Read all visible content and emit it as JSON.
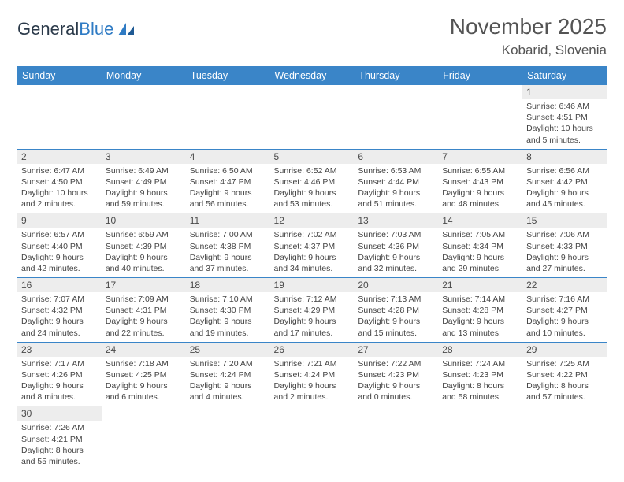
{
  "logo": {
    "text1": "General",
    "text2": "Blue"
  },
  "title": "November 2025",
  "location": "Kobarid, Slovenia",
  "days": [
    "Sunday",
    "Monday",
    "Tuesday",
    "Wednesday",
    "Thursday",
    "Friday",
    "Saturday"
  ],
  "colors": {
    "header_bg": "#3a85c8",
    "header_text": "#ffffff",
    "daynum_bg": "#ededed",
    "border": "#3a85c8"
  },
  "cells": [
    [
      null,
      null,
      null,
      null,
      null,
      null,
      {
        "n": "1",
        "sr": "Sunrise: 6:46 AM",
        "ss": "Sunset: 4:51 PM",
        "dl": "Daylight: 10 hours and 5 minutes."
      }
    ],
    [
      {
        "n": "2",
        "sr": "Sunrise: 6:47 AM",
        "ss": "Sunset: 4:50 PM",
        "dl": "Daylight: 10 hours and 2 minutes."
      },
      {
        "n": "3",
        "sr": "Sunrise: 6:49 AM",
        "ss": "Sunset: 4:49 PM",
        "dl": "Daylight: 9 hours and 59 minutes."
      },
      {
        "n": "4",
        "sr": "Sunrise: 6:50 AM",
        "ss": "Sunset: 4:47 PM",
        "dl": "Daylight: 9 hours and 56 minutes."
      },
      {
        "n": "5",
        "sr": "Sunrise: 6:52 AM",
        "ss": "Sunset: 4:46 PM",
        "dl": "Daylight: 9 hours and 53 minutes."
      },
      {
        "n": "6",
        "sr": "Sunrise: 6:53 AM",
        "ss": "Sunset: 4:44 PM",
        "dl": "Daylight: 9 hours and 51 minutes."
      },
      {
        "n": "7",
        "sr": "Sunrise: 6:55 AM",
        "ss": "Sunset: 4:43 PM",
        "dl": "Daylight: 9 hours and 48 minutes."
      },
      {
        "n": "8",
        "sr": "Sunrise: 6:56 AM",
        "ss": "Sunset: 4:42 PM",
        "dl": "Daylight: 9 hours and 45 minutes."
      }
    ],
    [
      {
        "n": "9",
        "sr": "Sunrise: 6:57 AM",
        "ss": "Sunset: 4:40 PM",
        "dl": "Daylight: 9 hours and 42 minutes."
      },
      {
        "n": "10",
        "sr": "Sunrise: 6:59 AM",
        "ss": "Sunset: 4:39 PM",
        "dl": "Daylight: 9 hours and 40 minutes."
      },
      {
        "n": "11",
        "sr": "Sunrise: 7:00 AM",
        "ss": "Sunset: 4:38 PM",
        "dl": "Daylight: 9 hours and 37 minutes."
      },
      {
        "n": "12",
        "sr": "Sunrise: 7:02 AM",
        "ss": "Sunset: 4:37 PM",
        "dl": "Daylight: 9 hours and 34 minutes."
      },
      {
        "n": "13",
        "sr": "Sunrise: 7:03 AM",
        "ss": "Sunset: 4:36 PM",
        "dl": "Daylight: 9 hours and 32 minutes."
      },
      {
        "n": "14",
        "sr": "Sunrise: 7:05 AM",
        "ss": "Sunset: 4:34 PM",
        "dl": "Daylight: 9 hours and 29 minutes."
      },
      {
        "n": "15",
        "sr": "Sunrise: 7:06 AM",
        "ss": "Sunset: 4:33 PM",
        "dl": "Daylight: 9 hours and 27 minutes."
      }
    ],
    [
      {
        "n": "16",
        "sr": "Sunrise: 7:07 AM",
        "ss": "Sunset: 4:32 PM",
        "dl": "Daylight: 9 hours and 24 minutes."
      },
      {
        "n": "17",
        "sr": "Sunrise: 7:09 AM",
        "ss": "Sunset: 4:31 PM",
        "dl": "Daylight: 9 hours and 22 minutes."
      },
      {
        "n": "18",
        "sr": "Sunrise: 7:10 AM",
        "ss": "Sunset: 4:30 PM",
        "dl": "Daylight: 9 hours and 19 minutes."
      },
      {
        "n": "19",
        "sr": "Sunrise: 7:12 AM",
        "ss": "Sunset: 4:29 PM",
        "dl": "Daylight: 9 hours and 17 minutes."
      },
      {
        "n": "20",
        "sr": "Sunrise: 7:13 AM",
        "ss": "Sunset: 4:28 PM",
        "dl": "Daylight: 9 hours and 15 minutes."
      },
      {
        "n": "21",
        "sr": "Sunrise: 7:14 AM",
        "ss": "Sunset: 4:28 PM",
        "dl": "Daylight: 9 hours and 13 minutes."
      },
      {
        "n": "22",
        "sr": "Sunrise: 7:16 AM",
        "ss": "Sunset: 4:27 PM",
        "dl": "Daylight: 9 hours and 10 minutes."
      }
    ],
    [
      {
        "n": "23",
        "sr": "Sunrise: 7:17 AM",
        "ss": "Sunset: 4:26 PM",
        "dl": "Daylight: 9 hours and 8 minutes."
      },
      {
        "n": "24",
        "sr": "Sunrise: 7:18 AM",
        "ss": "Sunset: 4:25 PM",
        "dl": "Daylight: 9 hours and 6 minutes."
      },
      {
        "n": "25",
        "sr": "Sunrise: 7:20 AM",
        "ss": "Sunset: 4:24 PM",
        "dl": "Daylight: 9 hours and 4 minutes."
      },
      {
        "n": "26",
        "sr": "Sunrise: 7:21 AM",
        "ss": "Sunset: 4:24 PM",
        "dl": "Daylight: 9 hours and 2 minutes."
      },
      {
        "n": "27",
        "sr": "Sunrise: 7:22 AM",
        "ss": "Sunset: 4:23 PM",
        "dl": "Daylight: 9 hours and 0 minutes."
      },
      {
        "n": "28",
        "sr": "Sunrise: 7:24 AM",
        "ss": "Sunset: 4:23 PM",
        "dl": "Daylight: 8 hours and 58 minutes."
      },
      {
        "n": "29",
        "sr": "Sunrise: 7:25 AM",
        "ss": "Sunset: 4:22 PM",
        "dl": "Daylight: 8 hours and 57 minutes."
      }
    ],
    [
      {
        "n": "30",
        "sr": "Sunrise: 7:26 AM",
        "ss": "Sunset: 4:21 PM",
        "dl": "Daylight: 8 hours and 55 minutes."
      },
      null,
      null,
      null,
      null,
      null,
      null
    ]
  ]
}
